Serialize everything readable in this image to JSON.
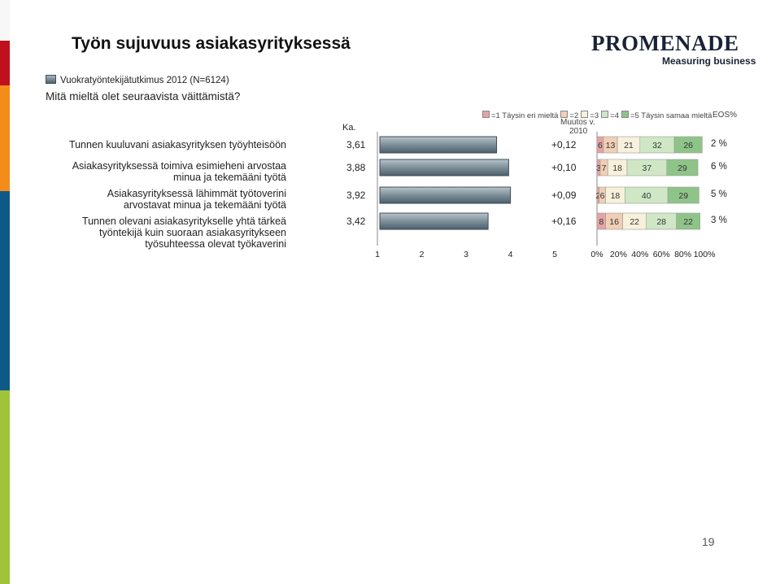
{
  "title": "Työn sujuvuus asiakasyrityksessä",
  "logo": {
    "name": "PROMENADE",
    "tagline": "Measuring business"
  },
  "survey": {
    "label": "Vuokratyöntekijätutkimus 2012 (N=6124)"
  },
  "question": "Mitä mieltä olet seuraavista väittämistä?",
  "headers": {
    "avg": "Ka.",
    "change_line1": "Muutos v.",
    "change_line2": "2010",
    "eos": "EOS%"
  },
  "legend": [
    {
      "label": "=1 Täysin eri mieltä",
      "color": "#e6a3a3"
    },
    {
      "label": "=2",
      "color": "#f0cfb5"
    },
    {
      "label": "=3",
      "color": "#f7f1dc"
    },
    {
      "label": "=4",
      "color": "#cfe7c5"
    },
    {
      "label": "=5 Täysin samaa mieltä",
      "color": "#8fc489"
    }
  ],
  "statements": [
    {
      "lines": [
        "Tunnen kuuluvani asiakasyrityksen työyhteisöön"
      ],
      "avg": "3,61",
      "change": "+0,12",
      "eos": "2 %"
    },
    {
      "lines": [
        "Asiakasyrityksessä toimiva esimieheni arvostaa",
        "minua ja tekemääni työtä"
      ],
      "avg": "3,88",
      "change": "+0,10",
      "eos": "6 %"
    },
    {
      "lines": [
        "Asiakasyrityksessä lähimmät työtoverini",
        "arvostavat minua ja tekemääni työtä"
      ],
      "avg": "3,92",
      "change": "+0,09",
      "eos": "5 %"
    },
    {
      "lines": [
        "Tunnen olevani asiakasyritykselle yhtä tärkeä",
        "työntekijä kuin suoraan asiakasyritykseen",
        "työsuhteessa olevat työkaverini"
      ],
      "avg": "3,42",
      "change": "+0,16",
      "eos": "3 %"
    }
  ],
  "chart_data": [
    {
      "type": "bar",
      "orientation": "horizontal",
      "categories": [
        "Tunnen kuuluvani asiakasyrityksen työyhteisöön",
        "Asiakasyrityksessä toimiva esimieheni arvostaa minua ja tekemääni työtä",
        "Asiakasyrityksessä lähimmät työtoverini arvostavat minua ja tekemääni työtä",
        "Tunnen olevani asiakasyritykselle yhtä tärkeä työntekijä kuin suoraan asiakasyritykseen työsuhteessa olevat työkaverini"
      ],
      "values": [
        3.61,
        3.88,
        3.92,
        3.42
      ],
      "xlim": [
        1,
        5
      ],
      "ticks": [
        "1",
        "2",
        "3",
        "4",
        "5"
      ]
    },
    {
      "type": "bar",
      "stacked": true,
      "orientation": "horizontal",
      "categories": [
        "Tunnen kuuluvani asiakasyrityksen työyhteisöön",
        "Asiakasyrityksessä toimiva esimieheni arvostaa minua ja tekemääni työtä",
        "Asiakasyrityksessä lähimmät työtoverini arvostavat minua ja tekemääni työtä",
        "Tunnen olevani asiakasyritykselle yhtä tärkeä työntekijä kuin suoraan asiakasyritykseen työsuhteessa olevat työkaverini"
      ],
      "series": [
        {
          "name": "=1 Täysin eri mieltä",
          "values": [
            6,
            3,
            2,
            8
          ]
        },
        {
          "name": "=2",
          "values": [
            13,
            7,
            6,
            16
          ]
        },
        {
          "name": "=3",
          "values": [
            21,
            18,
            18,
            22
          ]
        },
        {
          "name": "=4",
          "values": [
            32,
            37,
            40,
            28
          ]
        },
        {
          "name": "=5 Täysin samaa mieltä",
          "values": [
            26,
            29,
            29,
            22
          ]
        }
      ],
      "xlim": [
        0,
        100
      ],
      "ticks": [
        "0%",
        "20%",
        "40%",
        "60%",
        "80%",
        "100%"
      ]
    }
  ]
}
